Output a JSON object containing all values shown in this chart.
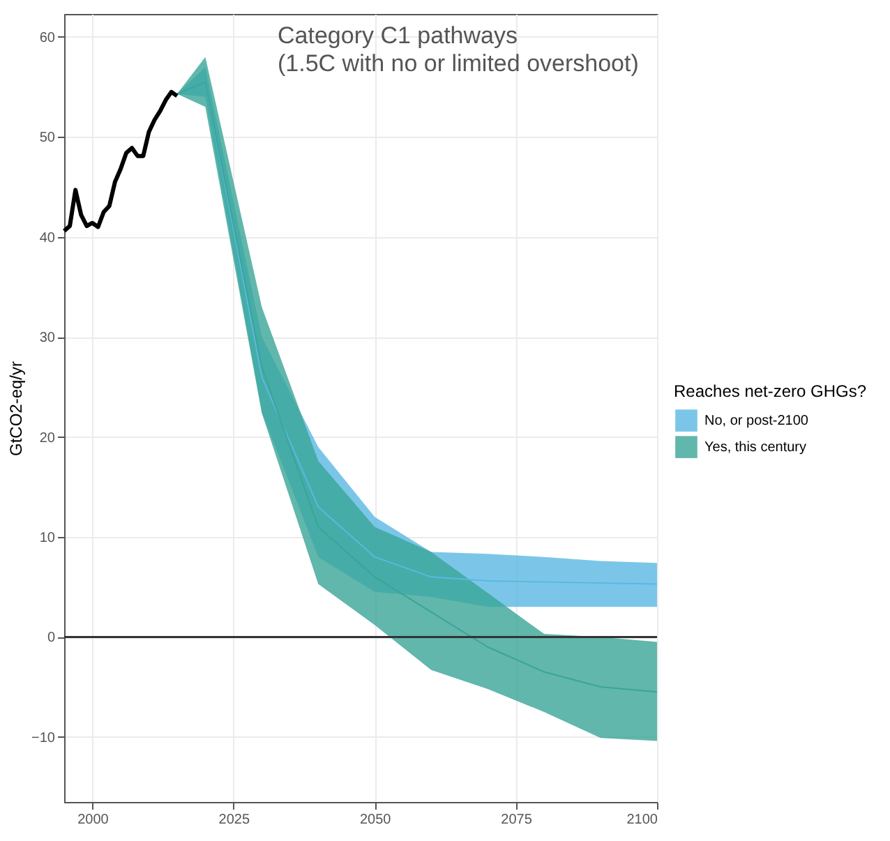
{
  "chart_data": {
    "type": "line",
    "annotations": [
      "Category C1 pathways\n(1.5C with no or limited overshoot)"
    ],
    "ylabel": "GtCO2-eq/yr",
    "legend_title": "Reaches net-zero GHGs?",
    "xlim": [
      1995,
      2100
    ],
    "xticks": [
      2000,
      2025,
      2050,
      2075,
      2100
    ],
    "ylim": [
      -16.5,
      62.3
    ],
    "yticks": [
      -10,
      0,
      10,
      20,
      30,
      40,
      50,
      60
    ],
    "grid": true,
    "legend": "right",
    "ref_lines": [
      {
        "axis": "y",
        "value": 0,
        "color": "#333333"
      }
    ],
    "series": [
      {
        "name": "No, or post-2100",
        "color": "#5ab8e2",
        "x": [
          2015,
          2020,
          2030,
          2040,
          2050,
          2060,
          2070,
          2080,
          2090,
          2100
        ],
        "values": [
          54.3,
          55.5,
          26,
          13,
          8,
          6,
          5.6,
          5.5,
          5.4,
          5.3
        ],
        "lower": [
          54.3,
          54,
          22.5,
          8,
          4.5,
          4,
          3,
          3,
          3,
          3
        ],
        "upper": [
          54.3,
          57,
          30,
          19,
          12,
          8.5,
          8.3,
          8,
          7.6,
          7.4
        ]
      },
      {
        "name": "Yes, this century",
        "color": "#3aa596",
        "x": [
          2015,
          2020,
          2030,
          2040,
          2050,
          2060,
          2070,
          2080,
          2090,
          2100
        ],
        "values": [
          54.3,
          55.5,
          27,
          11,
          6,
          2.5,
          -1,
          -3.5,
          -5,
          -5.5
        ],
        "lower": [
          54.3,
          53,
          22.4,
          5.3,
          1.2,
          -3.3,
          -5.2,
          -7.5,
          -10.1,
          -10.4
        ],
        "upper": [
          54.3,
          58,
          33,
          17.6,
          11,
          8.5,
          4.4,
          0.3,
          0,
          -0.5
        ]
      },
      {
        "type": "line",
        "color": "#000000",
        "x": [
          1995,
          1996,
          1997,
          1998,
          1999,
          2000,
          2001,
          2002,
          2003,
          2004,
          2005,
          2006,
          2007,
          2008,
          2009,
          2010,
          2011,
          2012,
          2013,
          2014,
          2015
        ],
        "values": [
          40.6,
          41.1,
          44.7,
          42.2,
          41.1,
          41.4,
          41.0,
          42.5,
          43.1,
          45.5,
          46.8,
          48.4,
          48.9,
          48.1,
          48.1,
          50.5,
          51.7,
          52.6,
          53.7,
          54.5,
          54.1
        ]
      }
    ]
  }
}
